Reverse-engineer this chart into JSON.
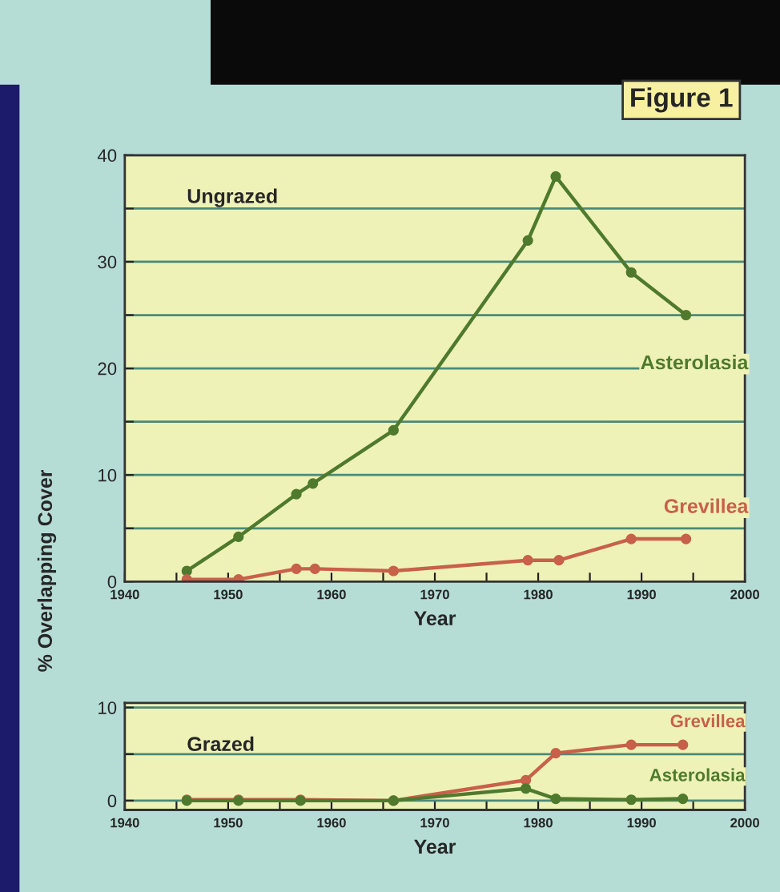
{
  "chart_data": [
    {
      "type": "line",
      "title": "Figure 1",
      "ylabel": "% Overlapping Cover",
      "xlabel": "Year",
      "annotations": [
        "Ungrazed"
      ],
      "marker": "circle",
      "grid": "y",
      "legend": false,
      "xlim": [
        1940,
        2000
      ],
      "xticks": [
        1940,
        {
          "value": 1945,
          "label": null
        },
        1950,
        {
          "value": 1955,
          "label": null
        },
        1960,
        {
          "value": 1965,
          "label": null
        },
        1970,
        {
          "value": 1975,
          "label": null
        },
        1980,
        {
          "value": 1985,
          "label": null
        },
        1990,
        {
          "value": 1995,
          "label": null
        },
        2000
      ],
      "ylim": [
        0,
        40
      ],
      "yticks": [
        0,
        {
          "value": 5,
          "label": null
        },
        10,
        {
          "value": 15,
          "label": null
        },
        20,
        {
          "value": 25,
          "label": null
        },
        30,
        {
          "value": 35,
          "label": null
        },
        40
      ],
      "series": [
        {
          "name": "Asterolasia",
          "color": "#4f7a2e",
          "x": [
            1946,
            1951,
            1956.6,
            1958.2,
            1966,
            1979,
            1981.7,
            1989,
            1994.3
          ],
          "values": [
            1,
            4.2,
            8.2,
            9.2,
            14.2,
            32,
            38,
            29,
            25
          ]
        },
        {
          "name": "Grevillea",
          "color": "#c8604a",
          "x": [
            1946,
            1951,
            1956.6,
            1958.4,
            1966,
            1979,
            1982,
            1989,
            1994.3
          ],
          "values": [
            0.2,
            0.2,
            1.2,
            1.2,
            1,
            2,
            2,
            4,
            4
          ]
        }
      ]
    },
    {
      "type": "line",
      "xlabel": "Year",
      "annotations": [
        "Grazed"
      ],
      "marker": "circle",
      "grid": "y",
      "legend": false,
      "xlim": [
        1940,
        2000
      ],
      "xticks": [
        1940,
        {
          "value": 1945,
          "label": null
        },
        1950,
        {
          "value": 1955,
          "label": null
        },
        1960,
        {
          "value": 1965,
          "label": null
        },
        1970,
        {
          "value": 1975,
          "label": null
        },
        1980,
        {
          "value": 1985,
          "label": null
        },
        1990,
        {
          "value": 1995,
          "label": null
        },
        2000
      ],
      "ylim": [
        -1,
        10.5
      ],
      "yticks": [
        0,
        {
          "value": 5,
          "label": null
        },
        10
      ],
      "series": [
        {
          "name": "Grevillea",
          "color": "#c8604a",
          "x": [
            1946,
            1951,
            1957,
            1966,
            1978.8,
            1981.7,
            1989,
            1994
          ],
          "values": [
            0.1,
            0.1,
            0.1,
            0,
            2.2,
            5.1,
            6,
            6
          ]
        },
        {
          "name": "Asterolasia",
          "color": "#4f7a2e",
          "x": [
            1946,
            1951,
            1957,
            1966,
            1978.8,
            1981.7,
            1989,
            1994
          ],
          "values": [
            0,
            0,
            0,
            0,
            1.3,
            0.2,
            0.1,
            0.2
          ]
        }
      ]
    }
  ]
}
